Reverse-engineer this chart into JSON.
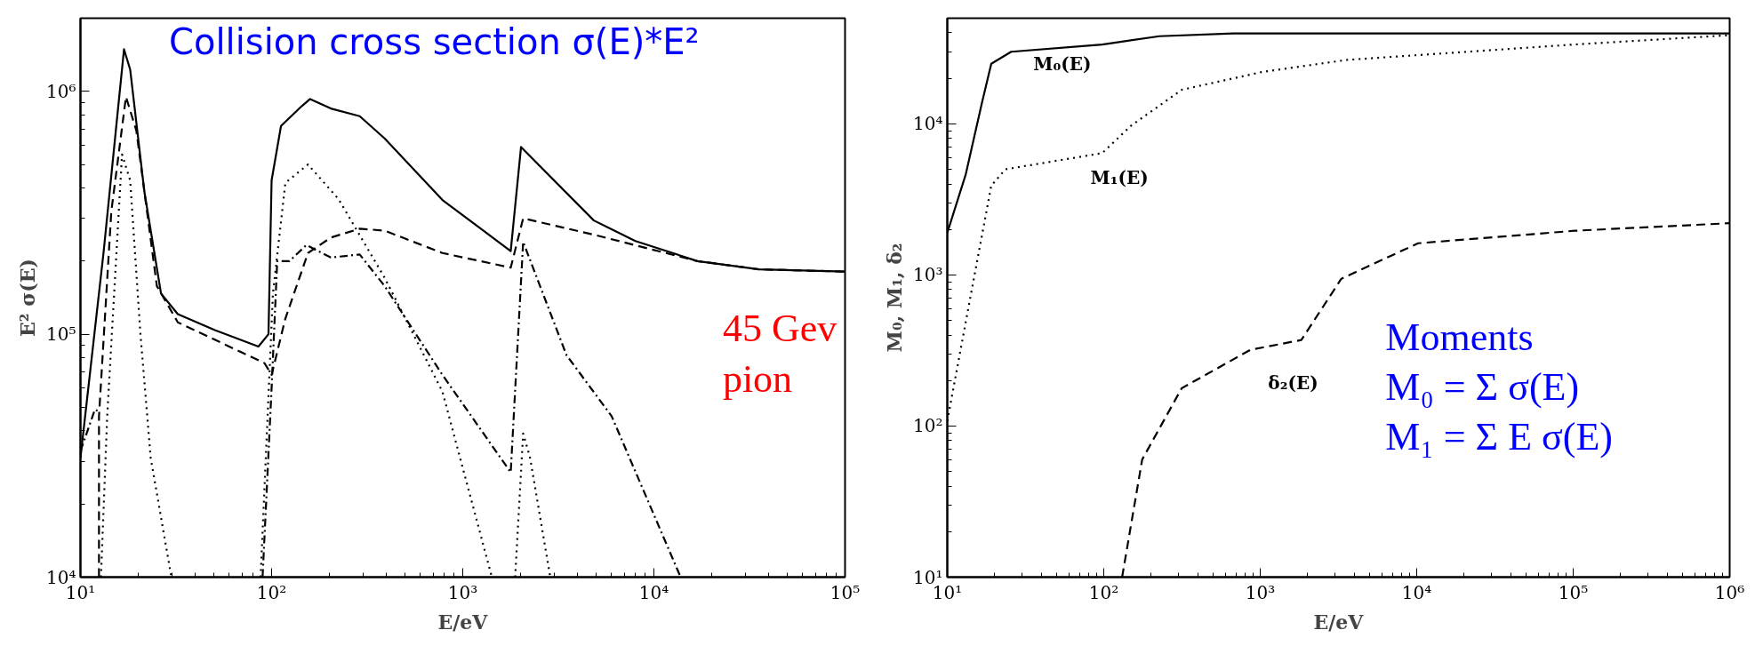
{
  "chart_data": [
    {
      "type": "line",
      "title": "Collision cross section  σ(E)*E²",
      "xlabel": "E/eV",
      "ylabel": "E² σ(E)",
      "log": "xy",
      "grid": false,
      "xlim": [
        10,
        100000
      ],
      "ylim": [
        10000,
        2000000
      ],
      "xticks": [
        {
          "value": 10,
          "label": "10¹"
        },
        {
          "value": 100,
          "label": "10²"
        },
        {
          "value": 1000,
          "label": "10³"
        },
        {
          "value": 10000,
          "label": "10⁴"
        },
        {
          "value": 100000,
          "label": "10⁵"
        }
      ],
      "yticks": [
        {
          "value": 10000,
          "label": "10⁴"
        },
        {
          "value": 100000,
          "label": "10⁵"
        },
        {
          "value": 1000000,
          "label": "10⁶"
        }
      ],
      "annotations": [
        "45 Gev\npion"
      ],
      "series": [
        {
          "color": "#000000",
          "line_style": "solid",
          "x": [
            10,
            13.2,
            16.9,
            18.2,
            21.6,
            26.4,
            32.3,
            50.5,
            85.3,
            96.3,
            100,
            112,
            144,
            159,
            204,
            289,
            390,
            783,
            1782,
            2018,
            4850,
            8000,
            16900,
            35500,
            100000
          ],
          "values": [
            31000,
            216000,
            1490000,
            1230000,
            386000,
            147000,
            121000,
            104000,
            89000,
            100000,
            430000,
            720000,
            870000,
            930000,
            850000,
            790000,
            640000,
            357000,
            220000,
            590000,
            294000,
            242000,
            200000,
            185000,
            181000
          ]
        },
        {
          "color": "#000000",
          "line_style": "dashed",
          "x": [
            12.5,
            12.5,
            14.5,
            17.3,
            19.6,
            25.1,
            32.3,
            91.9,
            100,
            118,
            155,
            204,
            289,
            390,
            783,
            1782,
            2070,
            4850,
            16900,
            35500,
            100000
          ],
          "values": [
            10000,
            46000,
            320000,
            950000,
            690000,
            158000,
            112000,
            76000,
            68000,
            116000,
            216000,
            250000,
            272000,
            267000,
            216000,
            188000,
            300000,
            257000,
            200000,
            185000,
            181000
          ]
        },
        {
          "color": "#000000",
          "line_style": "dotted",
          "x": [
            12.8,
            13.8,
            16.5,
            18.2,
            20.6,
            23.3,
            29.9,
            null,
            87.6,
            101.6,
            118,
            155,
            224,
            390,
            783,
            1420,
            null,
            1880,
            2070,
            2250,
            2870
          ],
          "values": [
            10000,
            46000,
            550000,
            430000,
            100000,
            31000,
            10000,
            null,
            10000,
            147000,
            420000,
            500000,
            360000,
            171000,
            58000,
            10000,
            null,
            10000,
            39000,
            31000,
            10000
          ]
        },
        {
          "color": "#000000",
          "line_style": "dashdot",
          "x": [
            10,
            11.9,
            12.5,
            null,
            89.7,
            100,
            107,
            124,
            152,
            204,
            289,
            390,
            783,
            1782,
            2070,
            3490,
            6010,
            13800
          ],
          "values": [
            33000,
            49000,
            48000,
            null,
            10000,
            60000,
            200000,
            200000,
            233000,
            207000,
            213000,
            158000,
            68000,
            27000,
            240000,
            82000,
            46000,
            10000
          ]
        }
      ]
    },
    {
      "type": "line",
      "xlabel": "E/eV",
      "ylabel": "M₀, M₁, δ₂",
      "log": "xy",
      "grid": false,
      "xlim": [
        10,
        1000000
      ],
      "ylim": [
        10,
        50000
      ],
      "xticks": [
        {
          "value": 10,
          "label": "10¹"
        },
        {
          "value": 100,
          "label": "10²"
        },
        {
          "value": 1000,
          "label": "10³"
        },
        {
          "value": 10000,
          "label": "10⁴"
        },
        {
          "value": 100000,
          "label": "10⁵"
        },
        {
          "value": 1000000,
          "label": "10⁶"
        }
      ],
      "yticks": [
        {
          "value": 10,
          "label": "10¹"
        },
        {
          "value": 100,
          "label": "10²"
        },
        {
          "value": 1000,
          "label": "10³"
        },
        {
          "value": 10000,
          "label": "10⁴"
        }
      ],
      "annotations": [
        "Moments\nM₀ = Σ σ(E)\nM₁ = Σ E σ(E)"
      ],
      "series": [
        {
          "name": "M₀(E)",
          "color": "#000000",
          "line_style": "solid",
          "x": [
            10,
            13.1,
            16.6,
            19.1,
            25.6,
            97.8,
            227,
            671,
            1000000
          ],
          "values": [
            1900,
            4600,
            13600,
            25000,
            30000,
            33500,
            38000,
            39600,
            39600
          ]
        },
        {
          "name": "M₁(E)",
          "color": "#000000",
          "line_style": "dotted",
          "x": [
            10,
            13.1,
            19.1,
            23.5,
            97.8,
            149,
            315,
            1020,
            3590,
            102000,
            1000000
          ],
          "values": [
            108,
            484,
            3900,
            5000,
            6400,
            9700,
            16800,
            22000,
            26500,
            33500,
            38600
          ]
        },
        {
          "name": "δ₂(E)",
          "color": "#000000",
          "line_style": "dashed",
          "x": [
            131,
            176,
            315,
            863,
            1830,
            3300,
            10200,
            102000,
            1000000
          ],
          "values": [
            10,
            60,
            178,
            319,
            371,
            944,
            1620,
            1960,
            2200
          ]
        }
      ]
    }
  ]
}
